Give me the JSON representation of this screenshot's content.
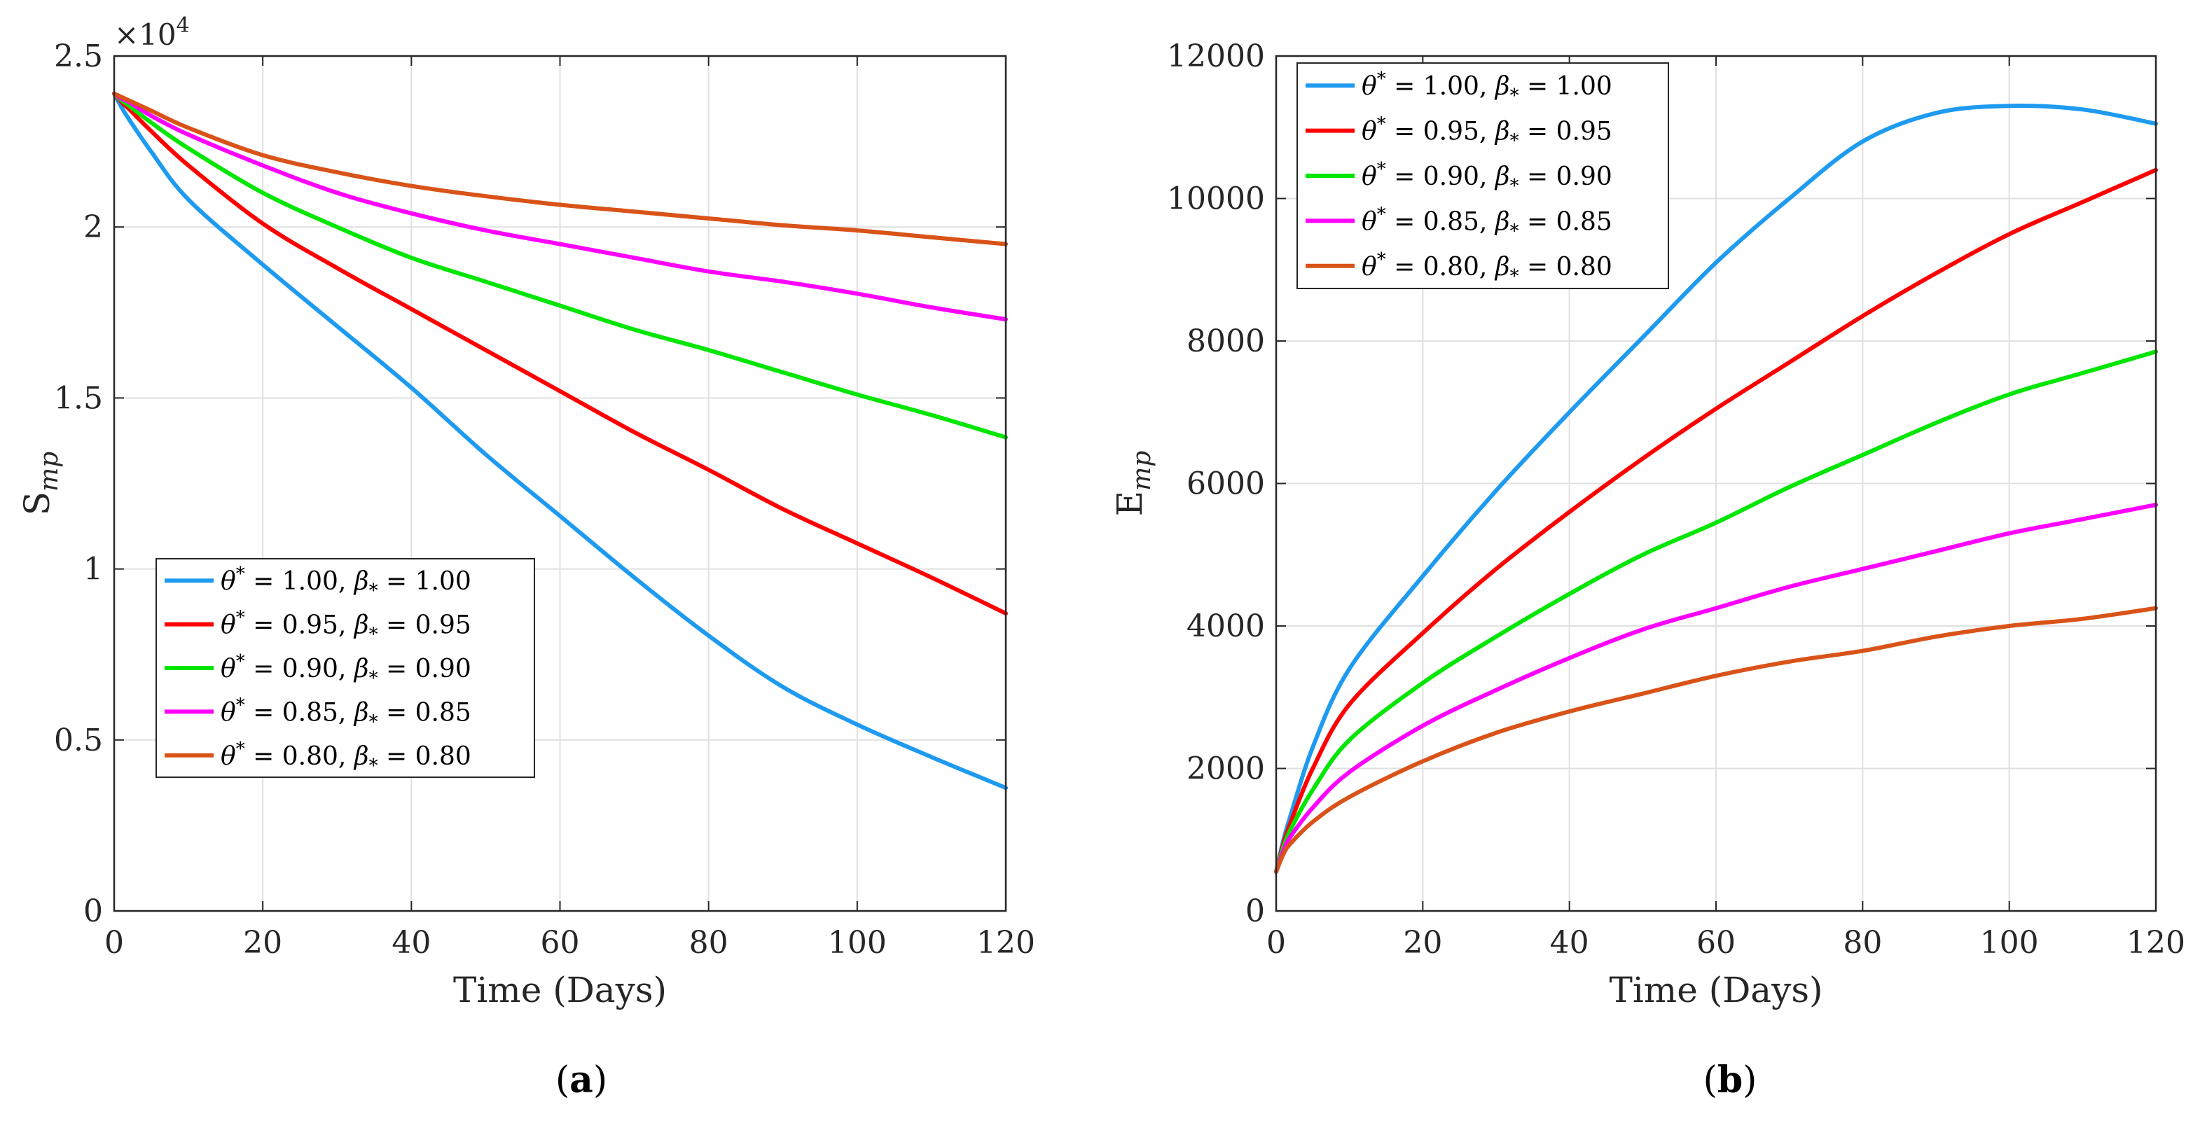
{
  "chart_data": [
    {
      "type": "line",
      "panel": "(a)",
      "xlabel": "Time (Days)",
      "ylabel": "S_mp",
      "ylabel_main": "S",
      "ylabel_sub": "mp",
      "y_exponent_label": "×10^4",
      "y_exponent_base": "×10",
      "y_exponent_power": "4",
      "xlim": [
        0,
        120
      ],
      "ylim": [
        0,
        25000
      ],
      "xticks": [
        0,
        20,
        40,
        60,
        80,
        100,
        120
      ],
      "yticks": [
        0,
        5000,
        10000,
        15000,
        20000,
        25000
      ],
      "ytick_labels": [
        "0",
        "0.5",
        "1",
        "1.5",
        "2",
        "2.5"
      ],
      "grid": true,
      "legend_position": "bottom-left",
      "x": [
        0,
        1,
        2,
        5,
        10,
        20,
        30,
        40,
        50,
        60,
        70,
        80,
        90,
        100,
        110,
        120
      ],
      "series": [
        {
          "name": "θ* = 1.00, β* = 1.00",
          "color": "#1e9bf0",
          "values": [
            23900,
            23500,
            23150,
            22200,
            20800,
            18900,
            17100,
            15300,
            13350,
            11550,
            9750,
            8050,
            6550,
            5450,
            4500,
            3600
          ]
        },
        {
          "name": "θ* = 0.95, β* = 0.95",
          "color": "#ff0000",
          "values": [
            23900,
            23650,
            23450,
            22800,
            21800,
            20100,
            18800,
            17600,
            16400,
            15200,
            14000,
            12900,
            11750,
            10750,
            9750,
            8700
          ]
        },
        {
          "name": "θ* = 0.90, β* = 0.90",
          "color": "#00e600",
          "values": [
            23900,
            23700,
            23550,
            23050,
            22300,
            21000,
            20000,
            19100,
            18400,
            17700,
            17000,
            16400,
            15750,
            15100,
            14500,
            13850
          ]
        },
        {
          "name": "θ* = 0.85, β* = 0.85",
          "color": "#ff00ff",
          "values": [
            23900,
            23750,
            23650,
            23250,
            22700,
            21800,
            21000,
            20400,
            19900,
            19500,
            19100,
            18700,
            18400,
            18050,
            17650,
            17300
          ]
        },
        {
          "name": "θ* = 0.80, β* = 0.80",
          "color": "#d95319",
          "values": [
            23900,
            23800,
            23700,
            23400,
            22900,
            22100,
            21600,
            21200,
            20900,
            20650,
            20450,
            20250,
            20050,
            19900,
            19700,
            19500
          ]
        }
      ],
      "caption": "(a)",
      "caption_letter": "a"
    },
    {
      "type": "line",
      "panel": "(b)",
      "xlabel": "Time (Days)",
      "ylabel": "E_mp",
      "ylabel_main": "E",
      "ylabel_sub": "mp",
      "xlim": [
        0,
        120
      ],
      "ylim": [
        0,
        12000
      ],
      "xticks": [
        0,
        20,
        40,
        60,
        80,
        100,
        120
      ],
      "yticks": [
        0,
        2000,
        4000,
        6000,
        8000,
        10000,
        12000
      ],
      "ytick_labels": [
        "0",
        "2000",
        "4000",
        "6000",
        "8000",
        "10000",
        "12000"
      ],
      "grid": true,
      "legend_position": "top-left",
      "x": [
        0,
        1,
        2,
        5,
        10,
        20,
        30,
        40,
        50,
        60,
        70,
        80,
        90,
        100,
        110,
        120
      ],
      "series": [
        {
          "name": "θ* = 1.00, β* = 1.00",
          "color": "#1e9bf0",
          "values": [
            550,
            1000,
            1350,
            2300,
            3400,
            4700,
            5900,
            7000,
            8050,
            9100,
            10000,
            10800,
            11200,
            11300,
            11250,
            11050
          ]
        },
        {
          "name": "θ* = 0.95, β* = 0.95",
          "color": "#ff0000",
          "values": [
            550,
            950,
            1250,
            2000,
            2900,
            3900,
            4800,
            5600,
            6350,
            7050,
            7700,
            8350,
            8950,
            9500,
            9950,
            10400
          ]
        },
        {
          "name": "θ* = 0.90, β* = 0.90",
          "color": "#00e600",
          "values": [
            550,
            900,
            1150,
            1700,
            2400,
            3200,
            3850,
            4450,
            5000,
            5450,
            5950,
            6400,
            6850,
            7250,
            7550,
            7850
          ]
        },
        {
          "name": "θ* = 0.85, β* = 0.85",
          "color": "#ff00ff",
          "values": [
            550,
            850,
            1050,
            1450,
            1950,
            2600,
            3100,
            3550,
            3950,
            4250,
            4550,
            4800,
            5050,
            5300,
            5500,
            5700
          ]
        },
        {
          "name": "θ* = 0.80, β* = 0.80",
          "color": "#d95319",
          "values": [
            550,
            800,
            950,
            1250,
            1600,
            2100,
            2500,
            2800,
            3050,
            3300,
            3500,
            3650,
            3850,
            4000,
            4100,
            4250
          ]
        }
      ],
      "caption": "(b)",
      "caption_letter": "b"
    }
  ]
}
